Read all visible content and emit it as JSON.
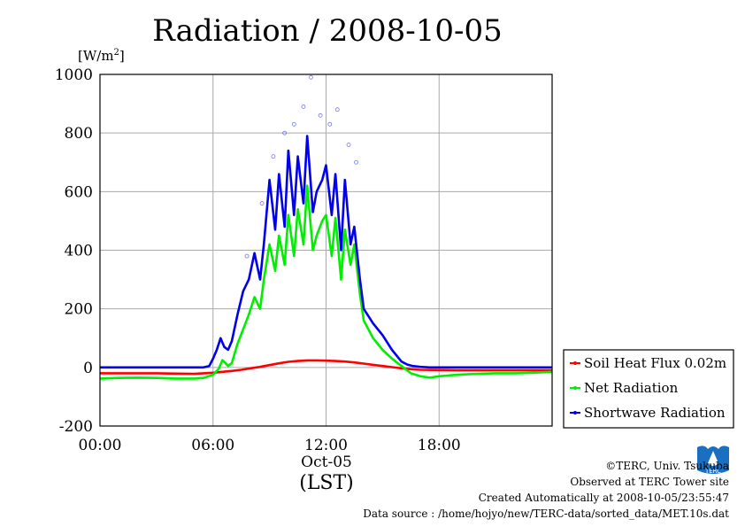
{
  "chart_data": {
    "type": "line",
    "title": "Radiation / 2008-10-05",
    "ylabel_unit": "[W/m",
    "ylabel_unit_sup": "2",
    "ylabel_unit_end": "]",
    "xlabel": "(LST)",
    "x_date_label": "Oct-05",
    "xlim": [
      "00:00",
      "24:00"
    ],
    "ylim": [
      -200,
      1000
    ],
    "yticks": [
      -200,
      0,
      200,
      400,
      600,
      800,
      1000
    ],
    "xticks": [
      "00:00",
      "06:00",
      "12:00",
      "18:00"
    ],
    "grid": true,
    "legend_position": "bottom-right",
    "series": [
      {
        "name": "Soil Heat Flux 0.02m",
        "color": "#ff0000",
        "x": [
          0,
          1,
          2,
          3,
          4,
          5,
          6,
          6.5,
          7,
          7.5,
          8,
          8.5,
          9,
          9.5,
          10,
          10.5,
          11,
          11.5,
          12,
          12.5,
          13,
          13.5,
          14,
          14.5,
          15,
          15.5,
          16,
          16.5,
          17,
          18,
          19,
          20,
          21,
          22,
          23,
          24
        ],
        "y": [
          -20,
          -20,
          -20,
          -20,
          -21,
          -22,
          -18,
          -15,
          -12,
          -8,
          -3,
          2,
          8,
          14,
          19,
          22,
          24,
          24,
          23,
          22,
          20,
          17,
          13,
          9,
          5,
          1,
          -3,
          -6,
          -8,
          -9,
          -10,
          -10,
          -10,
          -10,
          -10,
          -10
        ]
      },
      {
        "name": "Net Radiation",
        "color": "#00ee00",
        "x": [
          0,
          1,
          2,
          3,
          4,
          5,
          5.5,
          6,
          6.3,
          6.5,
          6.8,
          7,
          7.3,
          7.6,
          7.9,
          8.2,
          8.5,
          8.7,
          9,
          9.3,
          9.5,
          9.8,
          10,
          10.3,
          10.5,
          10.8,
          11,
          11.3,
          11.5,
          11.8,
          12,
          12.3,
          12.5,
          12.8,
          13,
          13.3,
          13.5,
          13.8,
          14,
          14.5,
          15,
          15.5,
          16,
          16.5,
          17,
          17.5,
          18,
          19,
          20,
          21,
          22,
          23,
          24
        ],
        "y": [
          -38,
          -36,
          -35,
          -36,
          -38,
          -38,
          -36,
          -25,
          -5,
          25,
          5,
          15,
          80,
          130,
          180,
          240,
          200,
          300,
          420,
          330,
          450,
          350,
          520,
          380,
          540,
          420,
          620,
          400,
          450,
          500,
          520,
          380,
          510,
          300,
          470,
          350,
          420,
          250,
          160,
          100,
          60,
          30,
          5,
          -20,
          -30,
          -35,
          -30,
          -25,
          -22,
          -20,
          -20,
          -18,
          -15
        ]
      },
      {
        "name": "Shortwave Radiation",
        "color": "#0000ee",
        "x": [
          0,
          1,
          2,
          3,
          4,
          5,
          5.5,
          5.8,
          6,
          6.2,
          6.4,
          6.6,
          6.8,
          7,
          7.3,
          7.6,
          7.9,
          8.2,
          8.5,
          8.7,
          9,
          9.3,
          9.5,
          9.8,
          10,
          10.3,
          10.5,
          10.8,
          11,
          11.3,
          11.5,
          11.8,
          12,
          12.3,
          12.5,
          12.8,
          13,
          13.3,
          13.5,
          13.8,
          14,
          14.5,
          15,
          15.5,
          16,
          16.3,
          16.6,
          17,
          17.5,
          18,
          19,
          20,
          21,
          22,
          23,
          24
        ],
        "y": [
          0,
          0,
          0,
          0,
          0,
          0,
          0,
          5,
          30,
          60,
          100,
          70,
          60,
          90,
          180,
          260,
          300,
          390,
          300,
          420,
          640,
          470,
          660,
          480,
          740,
          520,
          720,
          560,
          790,
          530,
          600,
          640,
          690,
          520,
          660,
          400,
          640,
          420,
          480,
          300,
          200,
          150,
          110,
          60,
          20,
          10,
          5,
          2,
          0,
          0,
          0,
          0,
          0,
          0,
          0,
          0
        ]
      }
    ],
    "scatter_peak": [
      {
        "x": 9.2,
        "y": 720
      },
      {
        "x": 9.8,
        "y": 800
      },
      {
        "x": 10.3,
        "y": 830
      },
      {
        "x": 10.8,
        "y": 890
      },
      {
        "x": 11.2,
        "y": 990
      },
      {
        "x": 11.7,
        "y": 860
      },
      {
        "x": 12.2,
        "y": 830
      },
      {
        "x": 12.6,
        "y": 880
      },
      {
        "x": 13.2,
        "y": 760
      },
      {
        "x": 13.6,
        "y": 700
      },
      {
        "x": 8.6,
        "y": 560
      },
      {
        "x": 7.8,
        "y": 380
      }
    ]
  },
  "credits": {
    "line1": "©TERC, Univ. Tsukuba",
    "line2": "Observed at TERC Tower site",
    "line3": "Created Automatically at 2008-10-05/23:55:47",
    "line4": "Data source : /home/hojyo/new/TERC-data/sorted_data/MET.10s.dat"
  },
  "logo": {
    "text": "TERC",
    "color": "#1a6fc0"
  }
}
